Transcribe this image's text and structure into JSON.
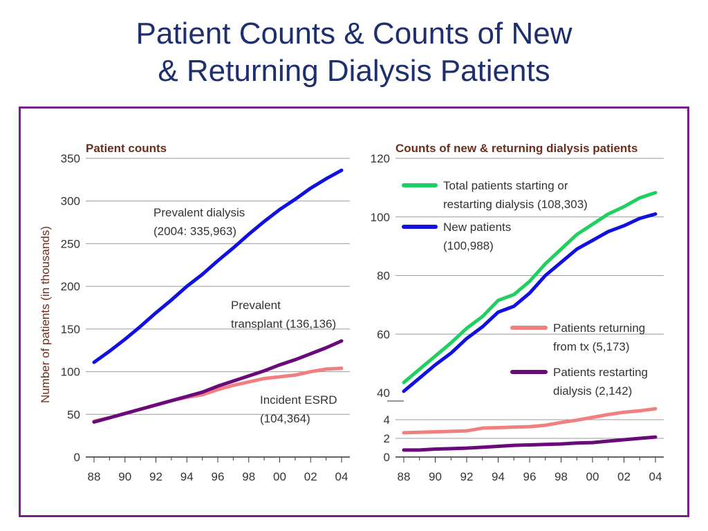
{
  "slide": {
    "title_line1": "Patient Counts & Counts of New",
    "title_line2": "& Returning Dialysis Patients"
  },
  "chart_data": [
    {
      "type": "line",
      "title": "Patient counts",
      "ylabel": "Number of patients (in thousands)",
      "xlabel": "",
      "x": [
        1988,
        1989,
        1990,
        1991,
        1992,
        1993,
        1994,
        1995,
        1996,
        1997,
        1998,
        1999,
        2000,
        2001,
        2002,
        2003,
        2004
      ],
      "x_ticks": [
        "88",
        "90",
        "92",
        "94",
        "96",
        "98",
        "00",
        "02",
        "04"
      ],
      "y_ticks": [
        "0",
        "50",
        "100",
        "150",
        "200",
        "250",
        "300",
        "350"
      ],
      "ylim": [
        0,
        350
      ],
      "grid": true,
      "series": [
        {
          "name": "Prevalent dialysis",
          "label_lines": [
            "Prevalent dialysis",
            "(2004: 335,963)"
          ],
          "color": "#1010e0",
          "values": [
            111,
            124,
            138,
            153,
            169,
            184,
            200,
            214,
            230,
            245,
            261,
            276,
            290,
            302,
            315,
            326,
            336
          ]
        },
        {
          "name": "Prevalent transplant",
          "label_lines": [
            "Prevalent",
            "transplant (136,136)"
          ],
          "color": "#6a0a7a",
          "values": [
            41,
            46,
            51,
            56,
            61,
            66,
            71,
            76,
            83,
            89,
            95,
            101,
            108,
            114,
            121,
            128,
            136
          ]
        },
        {
          "name": "Incident ESRD",
          "label_lines": [
            "Incident ESRD",
            "(104,364)"
          ],
          "color": "#f08080",
          "values": [
            42,
            46,
            51,
            56,
            61,
            66,
            70,
            73,
            79,
            84,
            88,
            92,
            94,
            96,
            100,
            103,
            104
          ]
        }
      ]
    },
    {
      "type": "line",
      "title": "Counts of new & returning dialysis patients",
      "x": [
        1988,
        1989,
        1990,
        1991,
        1992,
        1993,
        1994,
        1995,
        1996,
        1997,
        1998,
        1999,
        2000,
        2001,
        2002,
        2003,
        2004
      ],
      "x_ticks": [
        "88",
        "90",
        "92",
        "94",
        "96",
        "98",
        "00",
        "02",
        "04"
      ],
      "y_ticks_upper": [
        "40",
        "60",
        "80",
        "100",
        "120"
      ],
      "y_ticks_lower": [
        "0",
        "2",
        "4"
      ],
      "ylim": [
        0,
        120
      ],
      "y_axis_break": true,
      "grid": true,
      "series": [
        {
          "name": "Total patients starting or restarting dialysis",
          "label_lines": [
            "Total patients starting or",
            "restarting dialysis (108,303)"
          ],
          "color": "#1fd060",
          "values": [
            43.5,
            48,
            52.5,
            57,
            62,
            66,
            71.5,
            73.5,
            78,
            84,
            89,
            94,
            97.5,
            101,
            103.5,
            106.5,
            108.3
          ]
        },
        {
          "name": "New patients",
          "label_lines": [
            "New patients",
            "(100,988)"
          ],
          "color": "#1010e0",
          "values": [
            40.5,
            45,
            49.5,
            53.5,
            58.5,
            62.5,
            67.5,
            69.5,
            74,
            80,
            84.5,
            89,
            92,
            95,
            97,
            99.5,
            101
          ]
        },
        {
          "name": "Patients returning from tx",
          "label_lines": [
            "Patients returning",
            "from tx (5,173)"
          ],
          "color": "#f08080",
          "values": [
            2.6,
            2.65,
            2.7,
            2.75,
            2.8,
            3.1,
            3.15,
            3.2,
            3.25,
            3.4,
            3.7,
            3.95,
            4.25,
            4.55,
            4.8,
            4.95,
            5.17
          ]
        },
        {
          "name": "Patients restarting dialysis",
          "label_lines": [
            "Patients restarting",
            "dialysis (2,142)"
          ],
          "color": "#6a0a7a",
          "values": [
            0.75,
            0.75,
            0.85,
            0.9,
            0.95,
            1.05,
            1.15,
            1.25,
            1.3,
            1.35,
            1.4,
            1.5,
            1.55,
            1.7,
            1.85,
            2.0,
            2.14
          ]
        }
      ]
    }
  ]
}
